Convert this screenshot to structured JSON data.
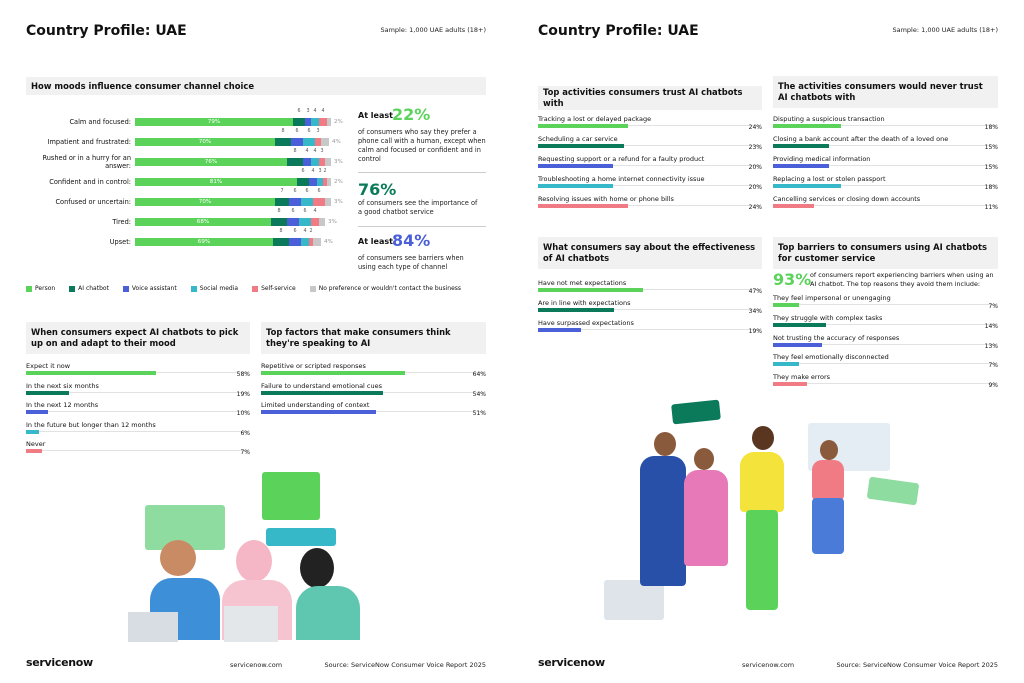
{
  "pages": [
    {
      "title": "Country Profile: UAE",
      "sample": "Sample: 1,000 UAE adults (18+)",
      "callouts": [
        {
          "lead": "At least",
          "stat": "22%",
          "text": "of consumers who say they prefer a phone call with a human, except when calm and focused or confident and in control"
        },
        {
          "stat": "76%",
          "text": "of consumers see the importance of a good chatbot service"
        },
        {
          "lead": "At least",
          "stat": "84%",
          "text": "of consumers see barriers when using each type of channel"
        }
      ],
      "footer": {
        "logo": "servicenow",
        "url": "servicenow.com",
        "source": "Source: ServiceNow Consumer Voice Report 2025"
      }
    },
    {
      "title": "Country Profile: UAE",
      "sample": "Sample: 1,000 UAE adults (18+)",
      "footer": {
        "logo": "servicenow",
        "url": "servicenow.com",
        "source": "Source: ServiceNow Consumer Voice Report 2025"
      }
    }
  ],
  "chart_data": [
    {
      "type": "stacked-bar",
      "title": "How moods influence consumer channel choice",
      "categories": [
        "Calm and focused:",
        "Impatient and frustrated:",
        "Rushed or in a hurry for an answer:",
        "Confident and in control:",
        "Confused or uncertain:",
        "Tired:",
        "Upset:"
      ],
      "series": [
        {
          "name": "Person",
          "color": "#5bd35b",
          "values": [
            79,
            70,
            76,
            81,
            70,
            68,
            69
          ],
          "value_labels": [
            "79%",
            "70%",
            "76%",
            "81%",
            "70%",
            "68%",
            "69%"
          ]
        },
        {
          "name": "AI chatbot",
          "color": "#0b7a5a",
          "values": [
            6,
            8,
            8,
            6,
            7,
            8,
            8
          ]
        },
        {
          "name": "Voice assistant",
          "color": "#4a5fd8",
          "values": [
            3,
            6,
            4,
            4,
            6,
            6,
            6
          ]
        },
        {
          "name": "Social media",
          "color": "#37b8c9",
          "values": [
            4,
            6,
            4,
            3,
            6,
            6,
            4
          ]
        },
        {
          "name": "Self-service",
          "color": "#f07b85",
          "values": [
            4,
            3,
            3,
            2,
            6,
            4,
            2
          ]
        },
        {
          "name": "No preference or wouldn't contact the business",
          "color": "#c8c8c8",
          "values": [
            2,
            4,
            3,
            2,
            3,
            3,
            4
          ],
          "value_labels": [
            "2%",
            "4%",
            "3%",
            "2%",
            "3%",
            "3%",
            "4%"
          ]
        }
      ],
      "xlim": [
        0,
        100
      ],
      "legend": "bottom"
    },
    {
      "type": "bar",
      "title": "When consumers expect AI chatbots to pick up on and adapt to their mood",
      "categories": [
        "Expect it now",
        "In the next six months",
        "In the next 12 months",
        "In the future but longer than 12 months",
        "Never"
      ],
      "values": [
        58,
        19,
        10,
        6,
        7
      ],
      "value_labels": [
        "58%",
        "19%",
        "10%",
        "6%",
        "7%"
      ],
      "colors": [
        "#5bd35b",
        "#0b7a5a",
        "#4a5fd8",
        "#37b8c9",
        "#f07b85"
      ],
      "xlim": [
        0,
        100
      ]
    },
    {
      "type": "bar",
      "title": "Top factors that make consumers think they're speaking to AI",
      "categories": [
        "Repetitive or scripted responses",
        "Failure to understand emotional cues",
        "Limited understanding of context"
      ],
      "values": [
        64,
        54,
        51
      ],
      "value_labels": [
        "64%",
        "54%",
        "51%"
      ],
      "colors": [
        "#5bd35b",
        "#0b7a5a",
        "#4a5fd8"
      ],
      "xlim": [
        0,
        100
      ]
    },
    {
      "type": "bar",
      "title": "Top activities consumers trust AI chatbots with",
      "categories": [
        "Tracking a lost or delayed package",
        "Scheduling a car service",
        "Requesting support or a refund for a faulty product",
        "Troubleshooting a home internet connectivity issue",
        "Resolving issues with home or phone bills"
      ],
      "values": [
        24,
        23,
        20,
        20,
        24
      ],
      "value_labels": [
        "24%",
        "23%",
        "20%",
        "20%",
        "24%"
      ],
      "colors": [
        "#5bd35b",
        "#0b7a5a",
        "#4a5fd8",
        "#37b8c9",
        "#f07b85"
      ],
      "xlim": [
        0,
        60
      ]
    },
    {
      "type": "bar",
      "title": "The activities consumers would never trust AI chatbots with",
      "categories": [
        "Disputing a suspicious transaction",
        "Closing a bank account after the death of a loved one",
        "Providing medical information",
        "Replacing a lost or stolen passport",
        "Cancelling services or closing down accounts"
      ],
      "values": [
        18,
        15,
        15,
        18,
        11
      ],
      "value_labels": [
        "18%",
        "15%",
        "15%",
        "18%",
        "11%"
      ],
      "colors": [
        "#5bd35b",
        "#0b7a5a",
        "#4a5fd8",
        "#37b8c9",
        "#f07b85"
      ],
      "xlim": [
        0,
        60
      ]
    },
    {
      "type": "bar",
      "title": "What consumers say about the effectiveness of AI chatbots",
      "categories": [
        "Have not met expectations",
        "Are in line with expectations",
        "Have surpassed expectations"
      ],
      "values": [
        47,
        34,
        19
      ],
      "value_labels": [
        "47%",
        "34%",
        "19%"
      ],
      "colors": [
        "#5bd35b",
        "#0b7a5a",
        "#4a5fd8"
      ],
      "xlim": [
        0,
        100
      ]
    },
    {
      "type": "bar",
      "title": "Top barriers to consumers using AI chatbots for customer service",
      "stat": "93%",
      "note": "of consumers report experiencing barriers when using an AI chatbot. The top reasons they avoid them include:",
      "categories": [
        "They feel impersonal or unengaging",
        "They struggle with complex tasks",
        "Not trusting the accuracy of responses",
        "They feel emotionally disconnected",
        "They make errors"
      ],
      "values": [
        7,
        14,
        13,
        7,
        9
      ],
      "value_labels": [
        "7%",
        "14%",
        "13%",
        "7%",
        "9%"
      ],
      "colors": [
        "#5bd35b",
        "#0b7a5a",
        "#4a5fd8",
        "#37b8c9",
        "#f07b85"
      ],
      "xlim": [
        0,
        60
      ]
    }
  ]
}
